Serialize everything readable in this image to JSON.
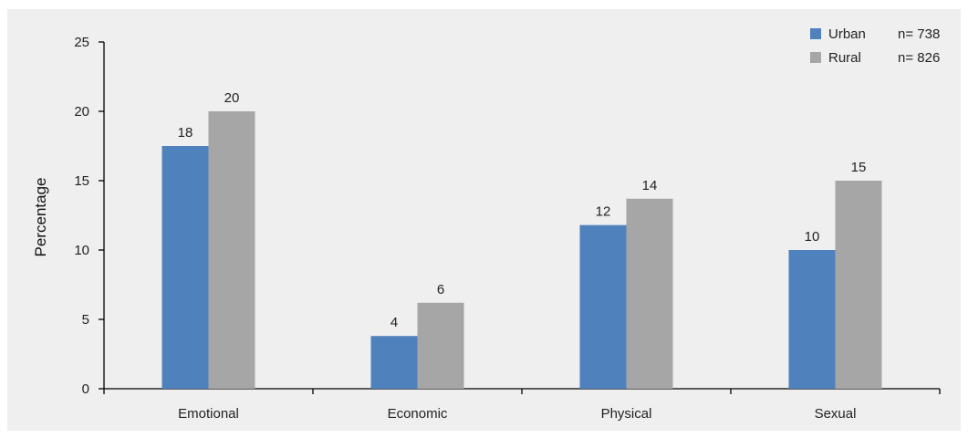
{
  "chart_data": {
    "type": "bar",
    "title": "",
    "xlabel": "",
    "ylabel": "Percentage",
    "ylim": [
      0,
      25
    ],
    "yticks": [
      0,
      5,
      10,
      15,
      20,
      25
    ],
    "grid": false,
    "legend_position": "top-right",
    "categories": [
      "Emotional",
      "Economic",
      "Physical",
      "Sexual"
    ],
    "series": [
      {
        "name": "Urban",
        "n_label": "n= 738",
        "color": "#4f81bd",
        "values": [
          17.5,
          3.8,
          11.8,
          10.0
        ],
        "labels": [
          "18",
          "4",
          "12",
          "10"
        ]
      },
      {
        "name": "Rural",
        "n_label": "n= 826",
        "color": "#a6a6a6",
        "values": [
          20.0,
          6.2,
          13.7,
          15.0
        ],
        "labels": [
          "20",
          "6",
          "14",
          "15"
        ]
      }
    ]
  }
}
